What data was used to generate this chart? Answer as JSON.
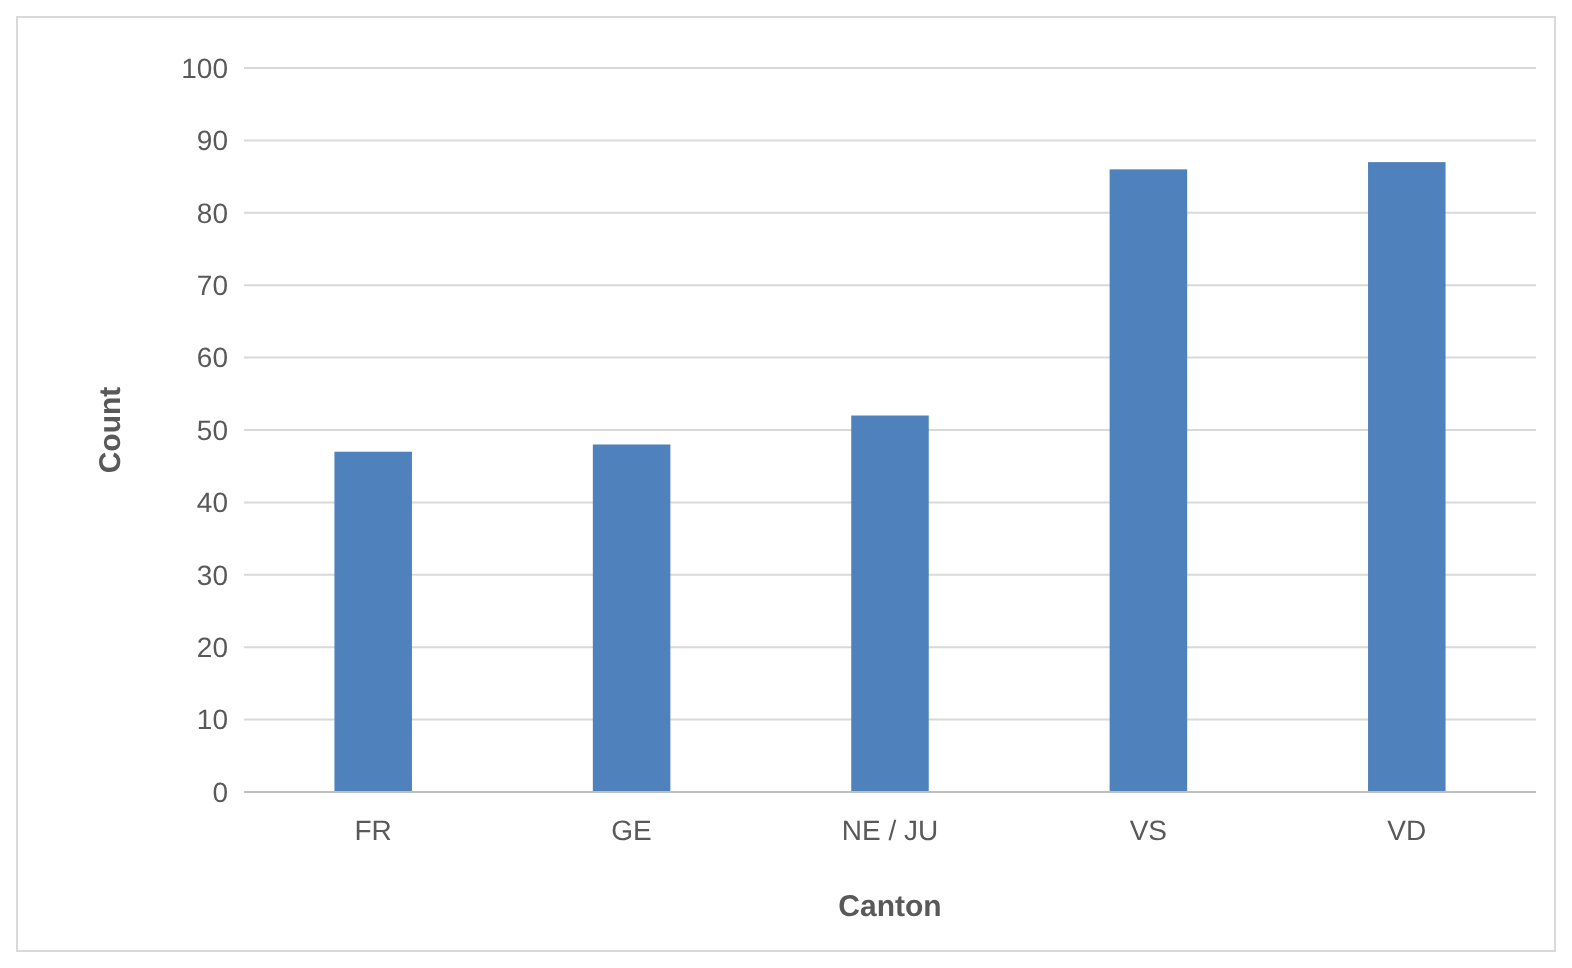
{
  "chart_data": {
    "type": "bar",
    "xlabel": "Canton",
    "ylabel": "Count",
    "categories": [
      "FR",
      "GE",
      "NE / JU",
      "VS",
      "VD"
    ],
    "values": [
      47,
      48,
      52,
      86,
      87
    ],
    "color": "#4f81bd",
    "ylim": [
      0,
      100
    ],
    "yticks": [
      0,
      10,
      20,
      30,
      40,
      50,
      60,
      70,
      80,
      90,
      100
    ],
    "grid": "y"
  }
}
